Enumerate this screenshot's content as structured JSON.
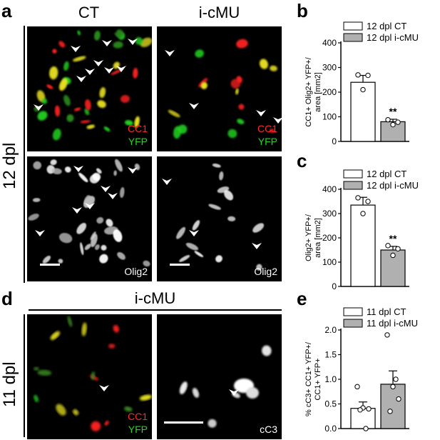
{
  "panels": {
    "a": {
      "letter": "a",
      "col1": "CT",
      "col2": "i-cMU",
      "row_label": "12 dpl",
      "ch1": "CC1",
      "ch2": "YFP",
      "ch3": "Olig2"
    },
    "b": {
      "letter": "b"
    },
    "c": {
      "letter": "c"
    },
    "d": {
      "letter": "d",
      "title": "i-cMU",
      "row_label": "11 dpl",
      "ch1": "CC1",
      "ch2": "YFP",
      "ch3": "cC3"
    },
    "e": {
      "letter": "e"
    }
  },
  "colors": {
    "cc1": "#ff2020",
    "yfp": "#22d022",
    "merge": "#e8e020",
    "bar_ct": "#ffffff",
    "bar_icmu": "#b0b0b0"
  },
  "chart_data": [
    {
      "type": "bar",
      "panel": "b",
      "categories": [
        "12 dpl CT",
        "12 dpl i-cMU"
      ],
      "values": [
        240,
        80
      ],
      "errors": [
        28,
        10
      ],
      "points": [
        [
          270,
          268,
          210
        ],
        [
          88,
          78,
          68
        ]
      ],
      "significance": [
        "",
        "**"
      ],
      "ylabel_line1": "CC1+ Olig2+ YFP+/",
      "ylabel_line2": "area [mm2]",
      "ylim": [
        0,
        400
      ],
      "yticks": [
        0,
        100,
        200,
        300,
        400
      ],
      "legend": [
        "12 dpl CT",
        "12 dpl i-cMU"
      ]
    },
    {
      "type": "bar",
      "panel": "c",
      "categories": [
        "12 dpl CT",
        "12 dpl i-cMU"
      ],
      "values": [
        335,
        150
      ],
      "errors": [
        32,
        15
      ],
      "points": [
        [
          365,
          350,
          300
        ],
        [
          168,
          155,
          128
        ]
      ],
      "significance": [
        "",
        "**"
      ],
      "ylabel_line1": "Olig2+ YFP+/",
      "ylabel_line2": "area [mm2]",
      "ylim": [
        0,
        400
      ],
      "yticks": [
        0,
        100,
        200,
        300,
        400
      ],
      "legend": [
        "12 dpl CT",
        "12 dpl i-cMU"
      ]
    },
    {
      "type": "bar",
      "panel": "e",
      "categories": [
        "11 dpl CT",
        "11 dpl i-cMU"
      ],
      "values": [
        0.41,
        0.9
      ],
      "errors": [
        0.13,
        0.27
      ],
      "points": [
        [
          0.85,
          0.42,
          0.4,
          0.38,
          0.0
        ],
        [
          1.9,
          0.85,
          0.6,
          0.35,
          1.0
        ]
      ],
      "significance": [
        "",
        ""
      ],
      "ylabel_line1": "% cC3+ CC1+ YFP+/",
      "ylabel_line2": "CC1+ YFP+",
      "ylim": [
        0,
        2.0
      ],
      "yticks": [
        "0.0",
        "0.5",
        "1.0",
        "1.5",
        "2.0"
      ],
      "legend": [
        "11 dpl CT",
        "11 dpl i-cMU"
      ]
    }
  ]
}
